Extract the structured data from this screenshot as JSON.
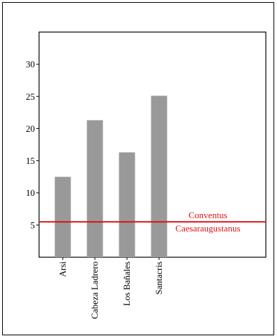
{
  "chart_data": {
    "type": "bar",
    "title": "",
    "xlabel": "",
    "ylabel": "",
    "categories": [
      "Arsi",
      "Cabeza Ladrero",
      "Los Bañales",
      "Santacris"
    ],
    "values": [
      12.5,
      21.3,
      16.3,
      25.1
    ],
    "ylim": [
      0,
      35
    ],
    "yticks": [
      5,
      10,
      15,
      20,
      25,
      30
    ],
    "ytick_labels": [
      "5",
      "10",
      "15",
      "20",
      "25",
      "30"
    ],
    "bar_color": "#999999",
    "grid": false,
    "legend": "none",
    "reference_line": {
      "value": 5.5,
      "color": "#dd1111",
      "label_line1": "Conventus",
      "label_line2": "Caesaraugustanus"
    }
  }
}
